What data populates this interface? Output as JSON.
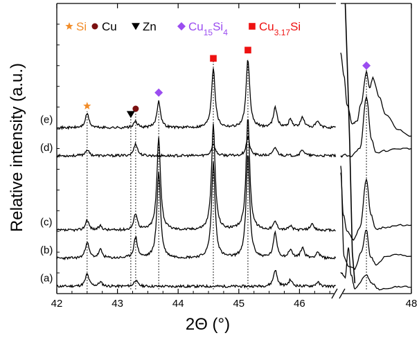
{
  "chart_data": {
    "type": "line",
    "title": "",
    "xlabel": "2Θ (°)",
    "ylabel": "Relative intensity (a.u.)",
    "x_axis": {
      "segments": [
        {
          "range": [
            42,
            46.6
          ]
        },
        {
          "range": [
            46.9,
            48
          ]
        }
      ],
      "ticks": [
        42,
        43,
        44,
        45,
        46,
        48
      ],
      "tick_labels": [
        "42",
        "43",
        "44",
        "45",
        "46",
        "48"
      ],
      "axis_break": true
    },
    "y_axis": {
      "range": [
        0,
        1.4
      ],
      "tick_labels": false
    },
    "legend": {
      "placement": "top",
      "entries": [
        {
          "marker": "star",
          "color": "#f28c28",
          "label": "Si",
          "sub": "",
          "label_end": ""
        },
        {
          "marker": "circle",
          "color": "#7b1010",
          "label": "Cu",
          "sub": "",
          "label_end": ""
        },
        {
          "marker": "triangle-down",
          "color": "#000000",
          "label": "Zn",
          "sub": "",
          "label_end": ""
        },
        {
          "marker": "diamond",
          "color": "#9b4df0",
          "label": "Cu",
          "sub": "15",
          "label_end": "Si",
          "sub2": "4"
        },
        {
          "marker": "square",
          "color": "#ee1111",
          "label": "Cu",
          "sub": "3.17",
          "label_end": "Si",
          "sub2": ""
        }
      ]
    },
    "reference_lines_x": [
      42.5,
      43.22,
      43.3,
      43.68,
      44.58,
      45.15,
      47.3
    ],
    "peak_markers": [
      {
        "marker": "star",
        "x": 42.5,
        "y": 0.905
      },
      {
        "marker": "circle",
        "x": 43.3,
        "y": 0.892
      },
      {
        "marker": "triangle-down",
        "x": 43.22,
        "y": 0.865
      },
      {
        "marker": "diamond",
        "x": 43.68,
        "y": 0.97
      },
      {
        "marker": "square",
        "x": 44.58,
        "y": 1.135
      },
      {
        "marker": "square",
        "x": 45.15,
        "y": 1.175
      },
      {
        "marker": "diamond",
        "x": 47.3,
        "y": 1.1
      }
    ],
    "series": [
      {
        "name": "(a)",
        "baseline": 0.035,
        "noise_seed": 11,
        "peaks": [
          [
            42.5,
            0.06
          ],
          [
            42.72,
            0.02
          ],
          [
            43.3,
            0.03
          ],
          [
            45.6,
            0.08
          ],
          [
            45.85,
            0.03
          ],
          [
            46.3,
            0.02
          ]
        ],
        "segment2": [
          [
            46.9,
            0.1
          ],
          [
            46.97,
            0.08
          ],
          [
            47.02,
            0.22
          ],
          [
            47.06,
            0.09
          ],
          [
            47.12,
            0.025
          ],
          [
            47.3,
            0.09
          ],
          [
            47.38,
            0.05
          ],
          [
            47.5,
            0.02
          ],
          [
            47.7,
            0.03
          ],
          [
            47.85,
            0.035
          ],
          [
            48,
            0.03
          ]
        ]
      },
      {
        "name": "(b)",
        "baseline": 0.17,
        "noise_seed": 23,
        "peaks": [
          [
            42.5,
            0.08
          ],
          [
            42.72,
            0.04
          ],
          [
            43.3,
            0.1
          ],
          [
            43.68,
            0.42
          ],
          [
            44.58,
            0.46
          ],
          [
            45.15,
            0.5
          ],
          [
            45.6,
            0.12
          ],
          [
            45.85,
            0.04
          ],
          [
            46.05,
            0.05
          ],
          [
            46.3,
            0.03
          ]
        ],
        "segment2": [
          [
            46.9,
            0.62
          ],
          [
            46.95,
            0.18
          ],
          [
            47.02,
            0.13
          ],
          [
            47.12,
            0.12
          ],
          [
            47.22,
            0.2
          ],
          [
            47.3,
            0.31
          ],
          [
            47.36,
            0.18
          ],
          [
            47.45,
            0.14
          ],
          [
            47.6,
            0.18
          ],
          [
            47.8,
            0.19
          ],
          [
            48,
            0.18
          ]
        ]
      },
      {
        "name": "(c)",
        "baseline": 0.305,
        "noise_seed": 37,
        "peaks": [
          [
            42.5,
            0.05
          ],
          [
            42.72,
            0.02
          ],
          [
            43.3,
            0.08
          ],
          [
            43.68,
            0.45
          ],
          [
            44.58,
            0.51
          ],
          [
            45.15,
            0.55
          ],
          [
            45.6,
            0.04
          ],
          [
            45.85,
            0.02
          ],
          [
            46.2,
            0.03
          ]
        ],
        "segment2": [
          [
            46.9,
            0.58
          ],
          [
            46.94,
            0.38
          ],
          [
            47.0,
            0.3
          ],
          [
            47.1,
            0.26
          ],
          [
            47.2,
            0.32
          ],
          [
            47.3,
            0.55
          ],
          [
            47.37,
            0.38
          ],
          [
            47.45,
            0.31
          ],
          [
            47.6,
            0.32
          ],
          [
            47.8,
            0.33
          ],
          [
            48,
            0.33
          ]
        ]
      },
      {
        "name": "(d)",
        "baseline": 0.665,
        "noise_seed": 53,
        "peaks": [
          [
            42.5,
            0.03
          ],
          [
            43.3,
            0.06
          ],
          [
            44.58,
            0.06
          ],
          [
            45.15,
            0.09
          ],
          [
            45.6,
            0.04
          ],
          [
            46.05,
            0.03
          ]
        ],
        "segment2": [
          [
            46.9,
            0.66
          ],
          [
            46.95,
            0.67
          ],
          [
            47.05,
            0.66
          ],
          [
            47.2,
            0.7
          ],
          [
            47.3,
            0.95
          ],
          [
            47.38,
            0.74
          ],
          [
            47.45,
            0.68
          ],
          [
            47.6,
            0.69
          ],
          [
            47.8,
            0.7
          ],
          [
            48,
            0.7
          ]
        ]
      },
      {
        "name": "(e)",
        "baseline": 0.8,
        "noise_seed": 71,
        "peaks": [
          [
            42.5,
            0.07
          ],
          [
            43.3,
            0.03
          ],
          [
            43.68,
            0.13
          ],
          [
            44.58,
            0.29
          ],
          [
            45.15,
            0.33
          ],
          [
            45.6,
            0.1
          ],
          [
            45.85,
            0.04
          ],
          [
            46.05,
            0.05
          ],
          [
            46.3,
            0.03
          ]
        ],
        "segment2": [
          [
            46.9,
            1.16
          ],
          [
            46.95,
            1.05
          ],
          [
            47.0,
            0.91
          ],
          [
            47.08,
            0.82
          ],
          [
            47.15,
            0.83
          ],
          [
            47.22,
            0.92
          ],
          [
            47.3,
            1.07
          ],
          [
            47.35,
            0.99
          ],
          [
            47.4,
            1.04
          ],
          [
            47.5,
            0.95
          ],
          [
            47.6,
            0.86
          ],
          [
            47.8,
            0.79
          ],
          [
            48,
            0.76
          ]
        ]
      }
    ],
    "extra_line": {
      "points": [
        [
          46.97,
          1.4
        ],
        [
          47.0,
          1.12
        ],
        [
          47.04,
          0.72
        ],
        [
          47.08,
          0.2
        ],
        [
          47.12,
          0.05
        ]
      ]
    }
  }
}
